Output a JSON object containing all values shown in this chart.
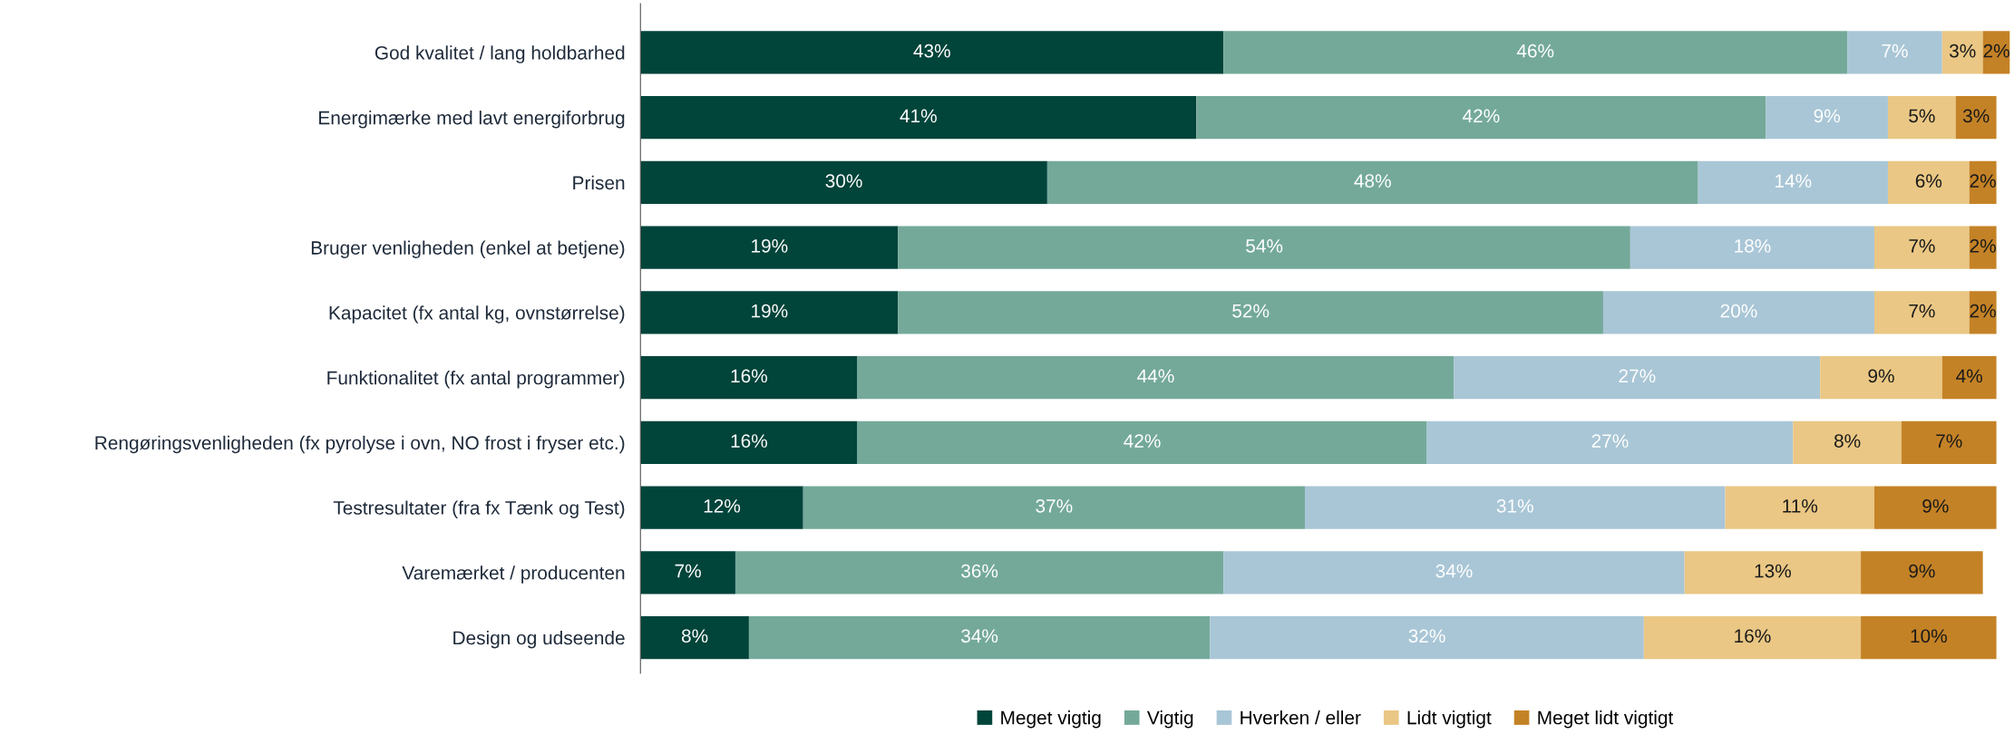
{
  "chart_data": {
    "type": "bar",
    "orientation": "horizontal",
    "stacked": true,
    "legend": "bottom",
    "grid": false,
    "categories": [
      "God kvalitet / lang holdbarhed",
      "Energimærke med lavt energiforbrug",
      "Prisen",
      "Bruger venligheden (enkel at betjene)",
      "Kapacitet (fx antal kg, ovnstørrelse)",
      "Funktionalitet (fx antal programmer)",
      "Rengøringsvenligheden (fx pyrolyse i ovn, NO frost i fryser etc.)",
      "Testresultater (fra fx Tænk og Test)",
      "Varemærket / producenten",
      "Design og udseende"
    ],
    "series": [
      {
        "name": "Meget vigtig",
        "color": "#00443a",
        "values": [
          43,
          41,
          30,
          19,
          19,
          16,
          16,
          12,
          7,
          8
        ],
        "value_labels": [
          "43%",
          "41%",
          "30%",
          "19%",
          "19%",
          "16%",
          "16%",
          "12%",
          "7%",
          "8%"
        ]
      },
      {
        "name": "Vigtig",
        "color": "#74a99a",
        "values": [
          46,
          42,
          48,
          54,
          52,
          44,
          42,
          37,
          36,
          34
        ],
        "value_labels": [
          "46%",
          "42%",
          "48%",
          "54%",
          "52%",
          "44%",
          "42%",
          "37%",
          "36%",
          "34%"
        ]
      },
      {
        "name": "Hverken / eller",
        "color": "#a9c6d6",
        "values": [
          7,
          9,
          14,
          18,
          20,
          27,
          27,
          31,
          34,
          32
        ],
        "value_labels": [
          "7%",
          "9%",
          "14%",
          "18%",
          "20%",
          "27%",
          "27%",
          "31%",
          "34%",
          "32%"
        ]
      },
      {
        "name": "Lidt vigtigt",
        "color": "#eac784",
        "values": [
          3,
          5,
          6,
          7,
          7,
          9,
          8,
          11,
          13,
          16
        ],
        "value_labels": [
          "3%",
          "5%",
          "6%",
          "7%",
          "7%",
          "9%",
          "8%",
          "11%",
          "13%",
          "16%"
        ]
      },
      {
        "name": "Meget lidt vigtigt",
        "color": "#c48226",
        "values": [
          2,
          3,
          2,
          2,
          2,
          4,
          7,
          9,
          9,
          10
        ],
        "value_labels": [
          "2%",
          "3%",
          "2%",
          "2%",
          "2%",
          "4%",
          "7%",
          "9%",
          "9%",
          "10%"
        ]
      }
    ]
  }
}
